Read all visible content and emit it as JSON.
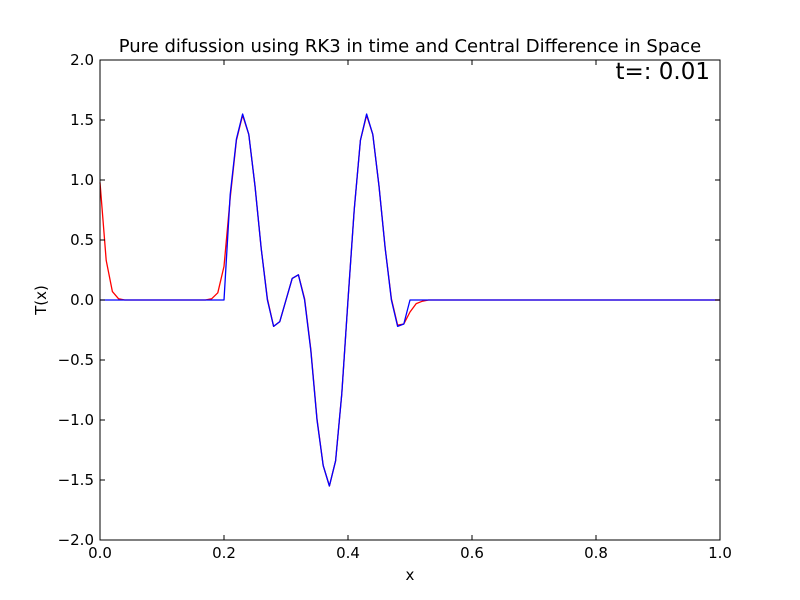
{
  "chart_data": {
    "type": "line",
    "title": "Pure difussion using RK3 in time and Central Difference in Space",
    "xlabel": "x",
    "ylabel": "T(x)",
    "xlim": [
      0.0,
      1.0
    ],
    "ylim": [
      -2.0,
      2.0
    ],
    "xticks": [
      "0.0",
      "0.2",
      "0.4",
      "0.6",
      "0.8",
      "1.0"
    ],
    "yticks": [
      "−2.0",
      "−1.5",
      "−1.0",
      "−0.5",
      "0.0",
      "0.5",
      "1.0",
      "1.5",
      "2.0"
    ],
    "xtick_values": [
      0.0,
      0.2,
      0.4,
      0.6,
      0.8,
      1.0
    ],
    "ytick_values": [
      -2.0,
      -1.5,
      -1.0,
      -0.5,
      0.0,
      0.5,
      1.0,
      1.5,
      2.0
    ],
    "grid": false,
    "legend": "none",
    "annotation": "t=: 0.01",
    "series": [
      {
        "color": "#ff0000",
        "x": [
          0.0,
          0.01,
          0.02,
          0.03,
          0.04,
          0.05,
          0.06,
          0.07,
          0.08,
          0.09,
          0.1,
          0.11,
          0.12,
          0.13,
          0.14,
          0.15,
          0.16,
          0.17,
          0.18,
          0.19,
          0.2,
          0.21,
          0.22,
          0.23,
          0.24,
          0.25,
          0.26,
          0.27,
          0.28,
          0.29,
          0.3,
          0.31,
          0.32,
          0.33,
          0.34,
          0.35,
          0.36,
          0.37,
          0.38,
          0.39,
          0.4,
          0.41,
          0.42,
          0.43,
          0.44,
          0.45,
          0.46,
          0.47,
          0.48,
          0.49,
          0.5,
          0.51,
          0.52,
          0.53,
          0.54,
          0.55,
          0.6,
          0.7,
          0.8,
          0.9,
          1.0
        ],
        "y": [
          0.98,
          0.33,
          0.07,
          0.01,
          0.0,
          0.0,
          0.0,
          0.0,
          0.0,
          0.0,
          0.0,
          0.0,
          0.0,
          0.0,
          0.0,
          0.0,
          0.0,
          0.0,
          0.01,
          0.06,
          0.28,
          0.85,
          1.33,
          1.54,
          1.38,
          0.95,
          0.43,
          0.01,
          -0.22,
          -0.18,
          0.0,
          0.18,
          0.21,
          0.01,
          -0.41,
          -0.99,
          -1.38,
          -1.55,
          -1.34,
          -0.78,
          0.0,
          0.75,
          1.33,
          1.54,
          1.38,
          0.95,
          0.43,
          0.01,
          -0.21,
          -0.2,
          -0.1,
          -0.03,
          -0.01,
          0.0,
          0.0,
          0.0,
          0.0,
          0.0,
          0.0,
          0.0,
          0.0
        ]
      },
      {
        "color": "#0000ff",
        "x": [
          0.0,
          0.1,
          0.2,
          0.21,
          0.22,
          0.23,
          0.24,
          0.25,
          0.26,
          0.27,
          0.28,
          0.29,
          0.3,
          0.31,
          0.32,
          0.33,
          0.34,
          0.35,
          0.36,
          0.37,
          0.38,
          0.39,
          0.4,
          0.41,
          0.42,
          0.43,
          0.44,
          0.45,
          0.46,
          0.47,
          0.48,
          0.49,
          0.5,
          0.51,
          0.6,
          0.8,
          1.0
        ],
        "y": [
          0.0,
          0.0,
          0.0,
          0.88,
          1.34,
          1.55,
          1.38,
          0.95,
          0.43,
          0.0,
          -0.22,
          -0.18,
          0.0,
          0.18,
          0.21,
          0.0,
          -0.42,
          -1.0,
          -1.38,
          -1.55,
          -1.34,
          -0.78,
          0.0,
          0.75,
          1.33,
          1.55,
          1.38,
          0.95,
          0.43,
          0.0,
          -0.22,
          -0.2,
          0.0,
          0.0,
          0.0,
          0.0,
          0.0
        ]
      }
    ]
  }
}
